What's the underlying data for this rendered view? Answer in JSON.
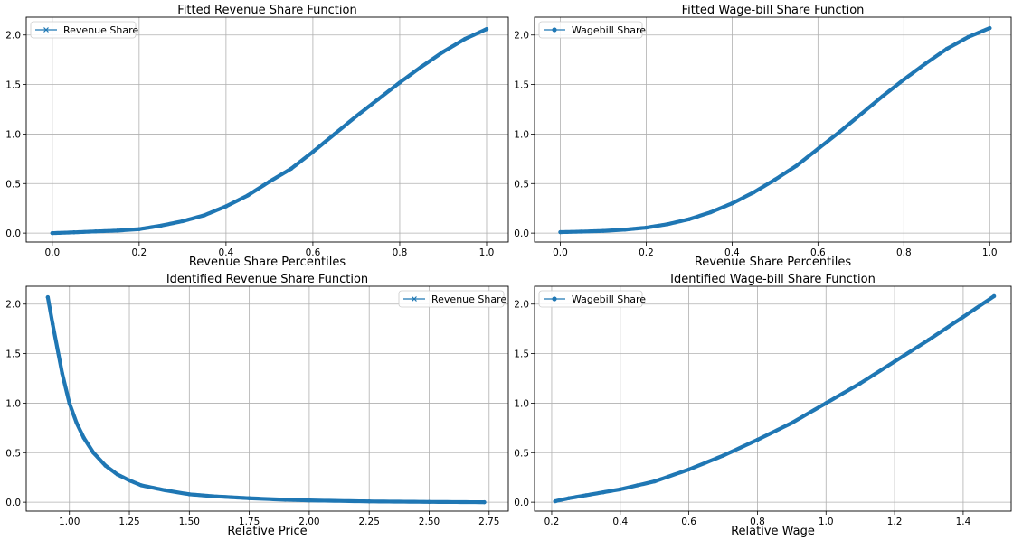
{
  "chart_data": [
    {
      "type": "line",
      "title": "Fitted Revenue Share Function",
      "xlabel": "Revenue Share Percentiles",
      "ylabel": "",
      "xlim": [
        -0.06,
        1.05
      ],
      "ylim": [
        -0.09,
        2.18
      ],
      "xticks": [
        0.0,
        0.2,
        0.4,
        0.6,
        0.8,
        1.0
      ],
      "xtick_labels": [
        "0.0",
        "0.2",
        "0.4",
        "0.6",
        "0.8",
        "1.0"
      ],
      "yticks": [
        0.0,
        0.5,
        1.0,
        1.5,
        2.0
      ],
      "ytick_labels": [
        "0.0",
        "0.5",
        "1.0",
        "1.5",
        "2.0"
      ],
      "grid": true,
      "legend_position": "upper-left",
      "marker": "x",
      "series": [
        {
          "name": "Revenue Share",
          "color": "#1f77b4",
          "x": [
            0.0,
            0.05,
            0.1,
            0.15,
            0.2,
            0.25,
            0.3,
            0.35,
            0.4,
            0.45,
            0.5,
            0.55,
            0.6,
            0.65,
            0.7,
            0.75,
            0.8,
            0.85,
            0.9,
            0.95,
            1.0
          ],
          "y": [
            0.0,
            0.008,
            0.017,
            0.025,
            0.04,
            0.075,
            0.12,
            0.18,
            0.27,
            0.38,
            0.52,
            0.65,
            0.82,
            1.0,
            1.18,
            1.35,
            1.52,
            1.68,
            1.83,
            1.96,
            2.06
          ]
        }
      ]
    },
    {
      "type": "line",
      "title": "Fitted Wage-bill Share Function",
      "xlabel": "Revenue Share Percentiles",
      "ylabel": "",
      "xlim": [
        -0.06,
        1.05
      ],
      "ylim": [
        -0.09,
        2.18
      ],
      "xticks": [
        0.0,
        0.2,
        0.4,
        0.6,
        0.8,
        1.0
      ],
      "xtick_labels": [
        "0.0",
        "0.2",
        "0.4",
        "0.6",
        "0.8",
        "1.0"
      ],
      "yticks": [
        0.0,
        0.5,
        1.0,
        1.5,
        2.0
      ],
      "ytick_labels": [
        "0.0",
        "0.5",
        "1.0",
        "1.5",
        "2.0"
      ],
      "grid": true,
      "legend_position": "upper-left",
      "marker": "o",
      "series": [
        {
          "name": "Wagebill Share",
          "color": "#1f77b4",
          "x": [
            0.0,
            0.05,
            0.1,
            0.15,
            0.2,
            0.25,
            0.3,
            0.35,
            0.4,
            0.45,
            0.5,
            0.55,
            0.6,
            0.65,
            0.7,
            0.75,
            0.8,
            0.85,
            0.9,
            0.95,
            1.0
          ],
          "y": [
            0.01,
            0.015,
            0.022,
            0.035,
            0.055,
            0.09,
            0.14,
            0.21,
            0.3,
            0.41,
            0.54,
            0.68,
            0.85,
            1.02,
            1.2,
            1.38,
            1.55,
            1.71,
            1.86,
            1.98,
            2.07
          ]
        }
      ]
    },
    {
      "type": "line",
      "title": "Identified Revenue Share Function",
      "xlabel": "Relative Price",
      "ylabel": "",
      "xlim": [
        0.82,
        2.83
      ],
      "ylim": [
        -0.09,
        2.18
      ],
      "xticks": [
        1.0,
        1.25,
        1.5,
        1.75,
        2.0,
        2.25,
        2.5,
        2.75
      ],
      "xtick_labels": [
        "1.00",
        "1.25",
        "1.50",
        "1.75",
        "2.00",
        "2.25",
        "2.50",
        "2.75"
      ],
      "yticks": [
        0.0,
        0.5,
        1.0,
        1.5,
        2.0
      ],
      "ytick_labels": [
        "0.0",
        "0.5",
        "1.0",
        "1.5",
        "2.0"
      ],
      "grid": true,
      "legend_position": "upper-right",
      "marker": "x",
      "series": [
        {
          "name": "Revenue Share",
          "color": "#1f77b4",
          "x": [
            0.91,
            0.93,
            0.95,
            0.97,
            1.0,
            1.03,
            1.06,
            1.1,
            1.15,
            1.2,
            1.25,
            1.3,
            1.4,
            1.5,
            1.6,
            1.75,
            1.9,
            2.0,
            2.25,
            2.5,
            2.73
          ],
          "y": [
            2.07,
            1.8,
            1.55,
            1.3,
            1.0,
            0.8,
            0.65,
            0.5,
            0.37,
            0.28,
            0.22,
            0.17,
            0.12,
            0.08,
            0.06,
            0.04,
            0.025,
            0.018,
            0.008,
            0.003,
            0.0
          ]
        }
      ]
    },
    {
      "type": "line",
      "title": "Identified Wage-bill Share Function",
      "xlabel": "Relative Wage",
      "ylabel": "",
      "xlim": [
        0.15,
        1.54
      ],
      "ylim": [
        -0.09,
        2.18
      ],
      "xticks": [
        0.2,
        0.4,
        0.6,
        0.8,
        1.0,
        1.2,
        1.4
      ],
      "xtick_labels": [
        "0.2",
        "0.4",
        "0.6",
        "0.8",
        "1.0",
        "1.2",
        "1.4"
      ],
      "yticks": [
        0.0,
        0.5,
        1.0,
        1.5,
        2.0
      ],
      "ytick_labels": [
        "0.0",
        "0.5",
        "1.0",
        "1.5",
        "2.0"
      ],
      "grid": true,
      "legend_position": "upper-left",
      "marker": "o",
      "series": [
        {
          "name": "Wagebill Share",
          "color": "#1f77b4",
          "x": [
            0.21,
            0.25,
            0.3,
            0.35,
            0.4,
            0.45,
            0.5,
            0.6,
            0.7,
            0.8,
            0.9,
            1.0,
            1.1,
            1.2,
            1.3,
            1.4,
            1.49
          ],
          "y": [
            0.01,
            0.04,
            0.07,
            0.1,
            0.13,
            0.17,
            0.21,
            0.33,
            0.47,
            0.63,
            0.8,
            1.0,
            1.2,
            1.42,
            1.64,
            1.87,
            2.08
          ]
        }
      ]
    }
  ]
}
